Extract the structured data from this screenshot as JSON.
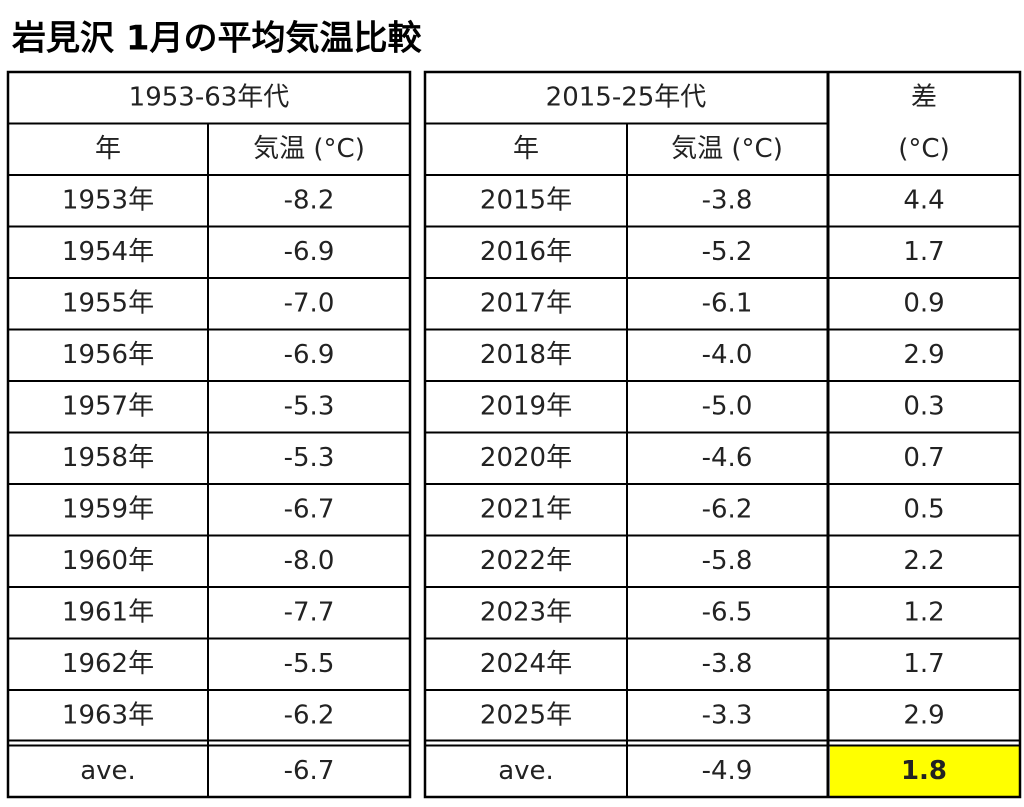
{
  "title": "岩見沢 1月の平均気温比較",
  "table": {
    "group_headers": [
      "1953-63年代",
      "2015-25年代",
      "差"
    ],
    "sub_headers": [
      "年",
      "気温 (°C)",
      "年",
      "気温 (°C)",
      "(°C)"
    ],
    "rows": [
      [
        "1953年",
        "-8.2",
        "2015年",
        "-3.8",
        "4.4"
      ],
      [
        "1954年",
        "-6.9",
        "2016年",
        "-5.2",
        "1.7"
      ],
      [
        "1955年",
        "-7.0",
        "2017年",
        "-6.1",
        "0.9"
      ],
      [
        "1956年",
        "-6.9",
        "2018年",
        "-4.0",
        "2.9"
      ],
      [
        "1957年",
        "-5.3",
        "2019年",
        "-5.0",
        "0.3"
      ],
      [
        "1958年",
        "-5.3",
        "2020年",
        "-4.6",
        "0.7"
      ],
      [
        "1959年",
        "-6.7",
        "2021年",
        "-6.2",
        "0.5"
      ],
      [
        "1960年",
        "-8.0",
        "2022年",
        "-5.8",
        "2.2"
      ],
      [
        "1961年",
        "-7.7",
        "2023年",
        "-6.5",
        "1.2"
      ],
      [
        "1962年",
        "-5.5",
        "2024年",
        "-3.8",
        "1.7"
      ],
      [
        "1963年",
        "-6.2",
        "2025年",
        "-3.3",
        "2.9"
      ]
    ],
    "average": [
      "ave.",
      "-6.7",
      "ave.",
      "-4.9",
      "1.8"
    ]
  }
}
